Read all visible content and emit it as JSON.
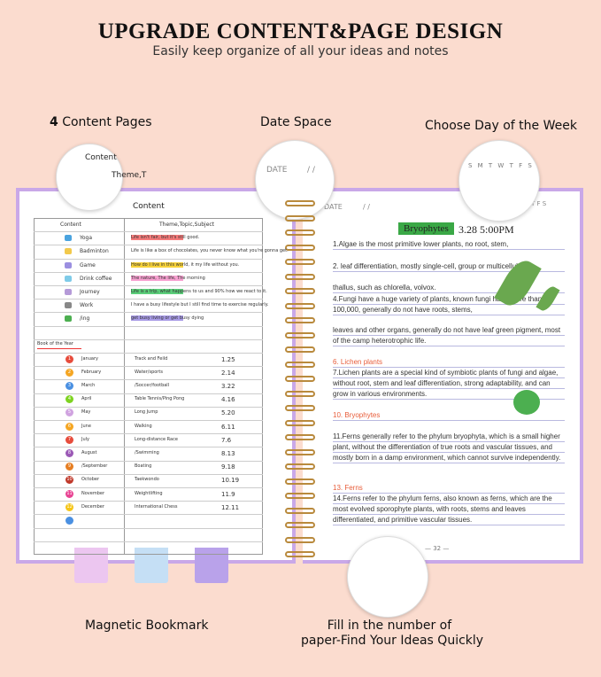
{
  "header": {
    "title": "UPGRADE CONTENT&PAGE DESIGN",
    "subtitle": "Easily keep organize of all your ideas and notes"
  },
  "callouts": {
    "content_pages_number": "4",
    "content_pages": "Content Pages",
    "date_space": "Date Space",
    "day_of_week": "Choose Day of the Week",
    "bookmark": "Magnetic Bookmark",
    "page_number": [
      "Fill in the number of",
      "paper-Find Your Ideas Quickly"
    ]
  },
  "zoom": {
    "content": "Content",
    "theme": "Theme,T",
    "date": "DATE",
    "date_sep": "/    /",
    "days": "S M T W T F S"
  },
  "left_page": {
    "title": "Content",
    "headers": [
      "Content",
      "Theme,Topic,Subject"
    ],
    "rows": [
      [
        "Yoga",
        "Life isn't fair, but it's still good."
      ],
      [
        "Badminton",
        "Life is like a box of chocolates, you never know what you're gonna get."
      ],
      [
        "Game",
        "How do I live in this world, it my life without you."
      ],
      [
        "Drink coffee",
        "The nature, The life, The morning"
      ],
      [
        "Journey",
        "Life is a trip, what happens to us and 90% how we react to it."
      ],
      [
        "Work",
        "I have a busy lifestyle but I still find time to exercise regularly."
      ],
      [
        "/ing",
        "get busy living or get busy dying"
      ]
    ],
    "year_title": "Book of the Year",
    "months": [
      [
        "1",
        "January",
        "Track and Feild",
        "1.25"
      ],
      [
        "2",
        "February",
        "Water/sports",
        "2.14"
      ],
      [
        "3",
        "March",
        "/Soccer/football",
        "3.22"
      ],
      [
        "4",
        "April",
        "Table Tennis/Ping Pong",
        "4.16"
      ],
      [
        "5",
        "May",
        "Long Jump",
        "5.20"
      ],
      [
        "6",
        "June",
        "Walking",
        "6.11"
      ],
      [
        "7",
        "July",
        "Long-distance Race",
        "7.6"
      ],
      [
        "8",
        "August",
        "/Swimming",
        "8.13"
      ],
      [
        "9",
        "/September",
        "Boating",
        "9.18"
      ],
      [
        "10",
        "October",
        "Taekwondo",
        "10.19"
      ],
      [
        "11",
        "November",
        "Weightlifting",
        "11.9"
      ],
      [
        "12",
        "December",
        "International Chess",
        "12.11"
      ]
    ]
  },
  "right_page": {
    "date_label": "DATE",
    "date_sep": "/    /",
    "days": "T F S",
    "heading": "Bryophytes",
    "datetime": "3.28 5:00PM",
    "paragraphs": [
      "1.Algae is the most primitive lower plants, no root, stem,",
      "2. leaf differentiation, mostly single-cell, group or multicellular",
      "thallus, such as chlorella, volvox.",
      "4.Fungi have a huge variety of plants, known fungi have more than 100,000, generally do not have roots, stems,",
      "leaves and other organs, generally do not have leaf green pigment, most of the camp heterotrophic life.",
      "6. Lichen plants",
      "7.Lichen plants are a special kind of symbiotic plants of fungi and algae, without root, stem and leaf differentiation, strong adaptability, and can grow in various environments.",
      "10. Bryophytes",
      "11.Ferns generally refer to the phylum bryophyta, which is a small higher plant, without the differentiation of true roots and vascular tissues, and mostly born in a damp environment, which cannot survive independently.",
      "13. Ferns",
      "14.Ferns refer to the phylum ferns, also known as ferns, which are the most evolved sporophyte plants, with roots, stems and leaves differentiated, and primitive vascular tissues."
    ],
    "page_number": "— 32 —"
  }
}
